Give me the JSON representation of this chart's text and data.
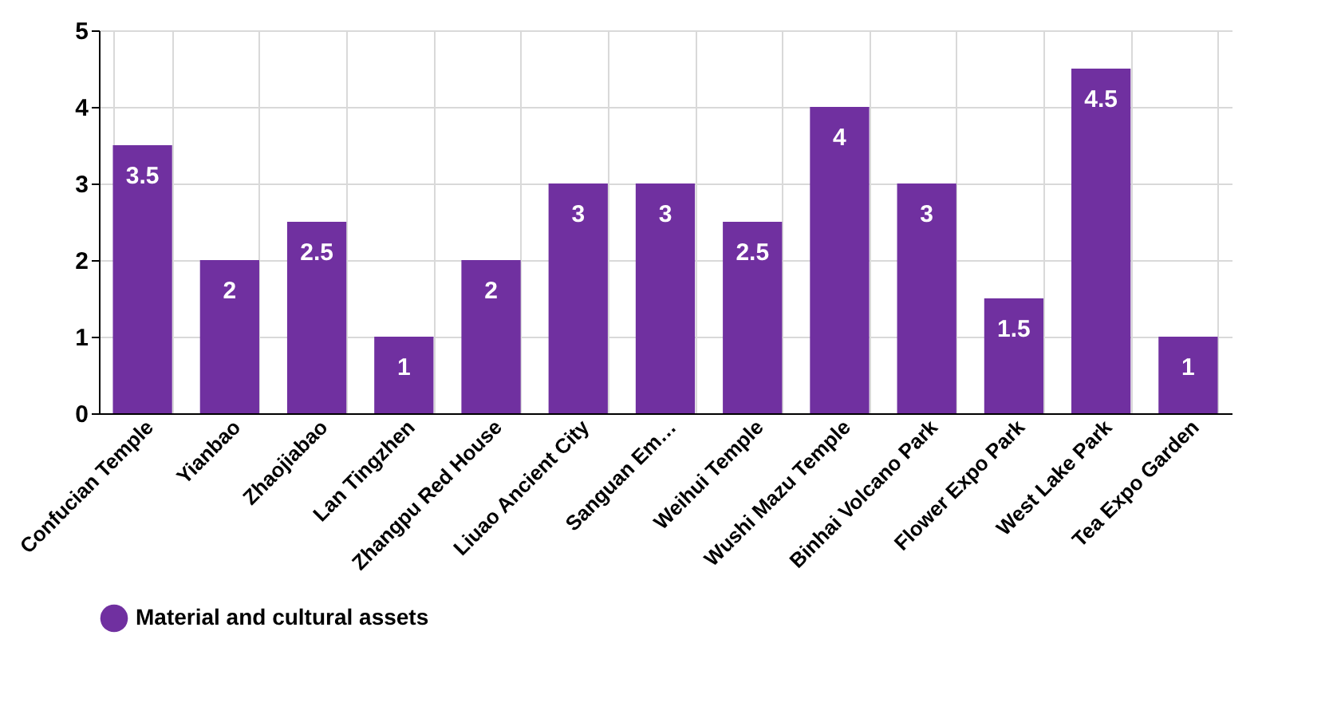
{
  "chart_data": {
    "type": "bar",
    "categories": [
      "Confucian Temple",
      "Yianbao",
      "Zhaojiabao",
      "Lan Tingzhen",
      "Zhangpu Red House",
      "Liuao Ancient City",
      "Sanguan Em…",
      "Weihui Temple",
      "Wushi Mazu Temple",
      "Binhai Volcano Park",
      "Flower Expo Park",
      "West Lake Park",
      "Tea Expo Garden"
    ],
    "series": [
      {
        "name": "Material and cultural assets",
        "color": "#7030a0",
        "values": [
          3.5,
          2,
          2.5,
          1,
          2,
          3,
          3,
          2.5,
          4,
          3,
          1.5,
          4.5,
          1
        ]
      }
    ],
    "ylim": [
      0,
      5
    ],
    "yticks": [
      0,
      1,
      2,
      3,
      4,
      5
    ],
    "grid": true,
    "legend": "bottom",
    "data_labels": true
  }
}
